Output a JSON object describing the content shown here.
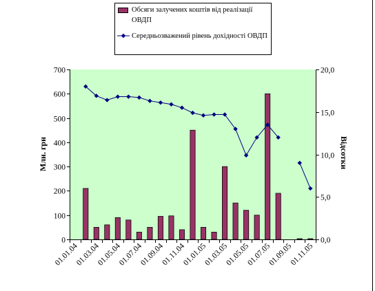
{
  "chart_data": {
    "type": "bar",
    "categories": [
      "01.01.04",
      "",
      "01.03.04",
      "",
      "01.05.04",
      "",
      "01.07.04",
      "",
      "01.09.04",
      "",
      "01.11.04",
      "",
      "01.01.05",
      "",
      "01.03.05",
      "",
      "01.05.05",
      "",
      "01.07.05",
      "",
      "01.09.05",
      "",
      "01.11.05"
    ],
    "series": [
      {
        "name": "Обсяги залучених коштів від реалізації ОВДП",
        "type": "bar",
        "axis": "left",
        "values": [
          null,
          210,
          50,
          60,
          90,
          80,
          30,
          50,
          95,
          97,
          40,
          450,
          50,
          30,
          300,
          150,
          120,
          100,
          600,
          190,
          null,
          3,
          3
        ]
      },
      {
        "name": "Середньозважений рівень дохідності ОВДП",
        "type": "line",
        "axis": "right",
        "marker": "diamond",
        "values": [
          null,
          18.0,
          16.9,
          16.4,
          16.8,
          16.8,
          16.7,
          16.3,
          16.1,
          15.9,
          15.5,
          14.9,
          14.6,
          14.7,
          14.7,
          13.0,
          9.9,
          12.0,
          13.5,
          12.0,
          null,
          9.0,
          6.0
        ]
      }
    ],
    "ylabel": "Млн. грн",
    "ylabel_right": "Відсотки",
    "ylim": [
      0,
      700
    ],
    "ylim_right": [
      0,
      20
    ],
    "y_ticks": [
      0,
      100,
      200,
      300,
      400,
      500,
      600,
      700
    ],
    "y_ticks_right": [
      "0,0",
      "5,0",
      "10,0",
      "15,0",
      "20,0"
    ],
    "grid": false,
    "legend": "top",
    "colors": {
      "plot_background": "#CCFFCC",
      "bar": "#993366",
      "line": "#000080"
    }
  }
}
